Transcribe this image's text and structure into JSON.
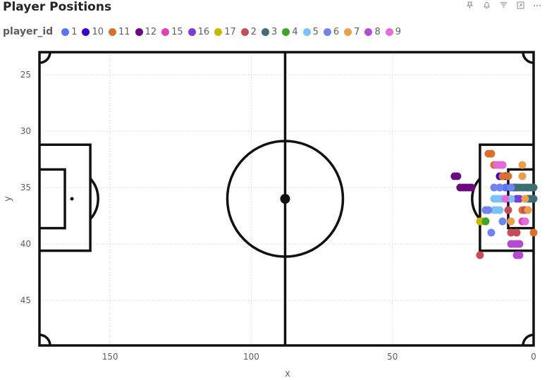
{
  "header": {
    "title": "Player Positions",
    "icons": [
      "pin-icon",
      "bell-icon",
      "filter-icon",
      "focus-mode-icon",
      "more-options-icon"
    ]
  },
  "legend": {
    "title": "player_id",
    "items": [
      {
        "label": "1",
        "color": "#5b73f5"
      },
      {
        "label": "10",
        "color": "#3b00c8"
      },
      {
        "label": "11",
        "color": "#d9712e"
      },
      {
        "label": "12",
        "color": "#6b0a7e"
      },
      {
        "label": "15",
        "color": "#e042b0"
      },
      {
        "label": "16",
        "color": "#7a3bd6"
      },
      {
        "label": "17",
        "color": "#c9b800"
      },
      {
        "label": "2",
        "color": "#c54d5a"
      },
      {
        "label": "3",
        "color": "#3d6e74"
      },
      {
        "label": "4",
        "color": "#3aa52a"
      },
      {
        "label": "5",
        "color": "#7cc2f5"
      },
      {
        "label": "6",
        "color": "#7084f0"
      },
      {
        "label": "7",
        "color": "#e8a04c"
      },
      {
        "label": "8",
        "color": "#b44bd0"
      },
      {
        "label": "9",
        "color": "#e46bd8"
      }
    ]
  },
  "chart_data": {
    "type": "scatter",
    "title": "Player Positions",
    "xlabel": "x",
    "ylabel": "y",
    "xlim": [
      175,
      0
    ],
    "ylim": [
      49,
      23
    ],
    "x_reversed": true,
    "y_reversed": true,
    "xticks": [
      150,
      100,
      50,
      0
    ],
    "yticks": [
      25,
      30,
      35,
      40,
      45
    ],
    "grid": true,
    "legend_position": "top-left",
    "background": "football pitch markings",
    "series": [
      {
        "name": "1",
        "points": [
          [
            11,
            33
          ],
          [
            6,
            35
          ],
          [
            8,
            35
          ],
          [
            10,
            35
          ],
          [
            12,
            35
          ],
          [
            2,
            35
          ]
        ]
      },
      {
        "name": "10",
        "points": [
          [
            11,
            34
          ],
          [
            10,
            34
          ],
          [
            12,
            34
          ],
          [
            7,
            35
          ]
        ]
      },
      {
        "name": "11",
        "points": [
          [
            16,
            32
          ],
          [
            15,
            32
          ],
          [
            14,
            33
          ],
          [
            11,
            34
          ],
          [
            9,
            34
          ],
          [
            4,
            37
          ],
          [
            2,
            37
          ],
          [
            0,
            39
          ]
        ]
      },
      {
        "name": "12",
        "points": [
          [
            28,
            34
          ],
          [
            27,
            34
          ],
          [
            26,
            35
          ],
          [
            25,
            35
          ],
          [
            24,
            35
          ],
          [
            23,
            35
          ],
          [
            22,
            35
          ]
        ]
      },
      {
        "name": "15",
        "points": [
          [
            13,
            33
          ],
          [
            12,
            33
          ],
          [
            4,
            38
          ],
          [
            3,
            38
          ]
        ]
      },
      {
        "name": "16",
        "points": [
          [
            6,
            36
          ],
          [
            5,
            36
          ]
        ]
      },
      {
        "name": "17",
        "points": [
          [
            19,
            38
          ],
          [
            18,
            38
          ],
          [
            17,
            38
          ]
        ]
      },
      {
        "name": "2",
        "points": [
          [
            9,
            37
          ],
          [
            3,
            37
          ],
          [
            8,
            39
          ],
          [
            6,
            39
          ],
          [
            19,
            41
          ]
        ]
      },
      {
        "name": "3",
        "points": [
          [
            7,
            35
          ],
          [
            6,
            35
          ],
          [
            5,
            35
          ],
          [
            4,
            35
          ],
          [
            3,
            35
          ],
          [
            2,
            35
          ],
          [
            1,
            35
          ],
          [
            0,
            35
          ],
          [
            2,
            36
          ],
          [
            1,
            36
          ],
          [
            0,
            36
          ]
        ]
      },
      {
        "name": "4",
        "points": [
          [
            17,
            38
          ]
        ]
      },
      {
        "name": "5",
        "points": [
          [
            14,
            36
          ],
          [
            13,
            36
          ],
          [
            12,
            36
          ],
          [
            11,
            36
          ],
          [
            14,
            37
          ],
          [
            13,
            37
          ],
          [
            12,
            37
          ],
          [
            8,
            36
          ],
          [
            4,
            34
          ]
        ]
      },
      {
        "name": "6",
        "points": [
          [
            14,
            35
          ],
          [
            12,
            35
          ],
          [
            17,
            37
          ],
          [
            16,
            37
          ],
          [
            15,
            39
          ],
          [
            11,
            38
          ],
          [
            8,
            35
          ]
        ]
      },
      {
        "name": "7",
        "points": [
          [
            4,
            33
          ],
          [
            3,
            36
          ],
          [
            8,
            38
          ],
          [
            4,
            34
          ],
          [
            2,
            37
          ]
        ]
      },
      {
        "name": "8",
        "points": [
          [
            8,
            40
          ],
          [
            7,
            40
          ],
          [
            6,
            40
          ],
          [
            5,
            40
          ],
          [
            6,
            41
          ],
          [
            5,
            41
          ]
        ]
      },
      {
        "name": "9",
        "points": [
          [
            13,
            33
          ],
          [
            12,
            33
          ],
          [
            11,
            33
          ],
          [
            10,
            36
          ],
          [
            3,
            38
          ]
        ]
      }
    ]
  }
}
